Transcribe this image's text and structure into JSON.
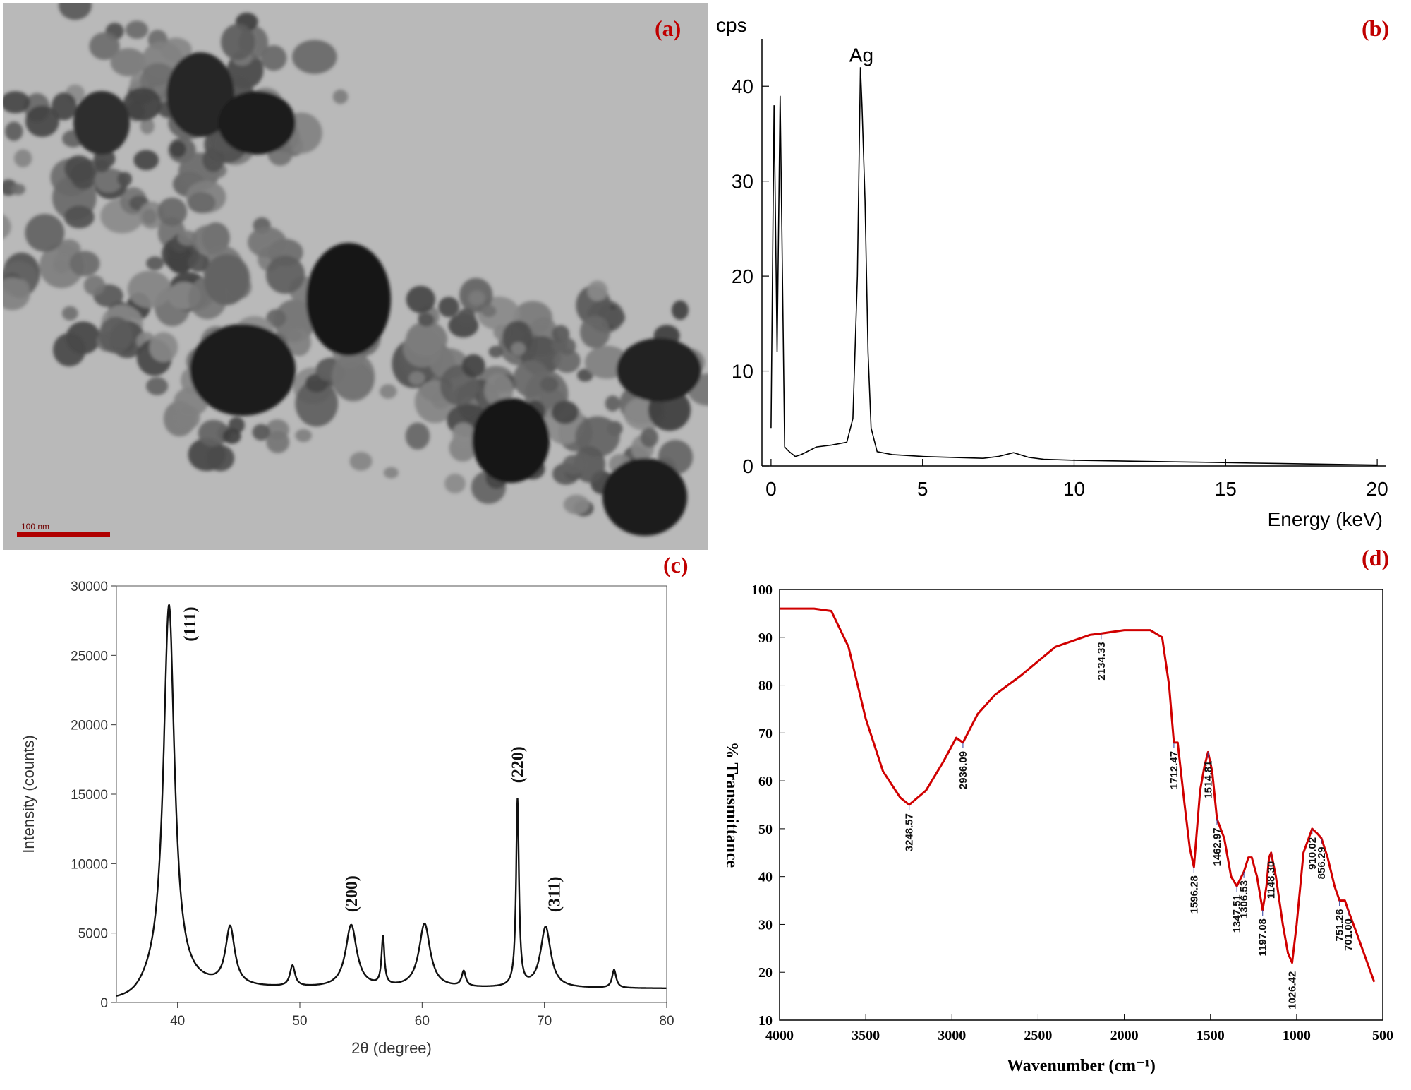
{
  "panels": {
    "a": {
      "label": "(a)",
      "scale_bar": "100 nm"
    },
    "b": {
      "label": "(b)"
    },
    "c": {
      "label": "(c)"
    },
    "d": {
      "label": "(d)"
    }
  },
  "colors": {
    "label": "#c00000",
    "ftir_line": "#d00000",
    "tem_bg": "#b8b8b8"
  },
  "chart_data": [
    {
      "id": "b",
      "type": "line",
      "title": "",
      "xlabel": "Energy (keV)",
      "ylabel": "cps",
      "xlim": [
        -0.3,
        20.3
      ],
      "ylim": [
        0,
        45
      ],
      "xticks": [
        0,
        5,
        10,
        15,
        20
      ],
      "yticks": [
        0,
        10,
        20,
        30,
        40
      ],
      "annotations": [
        {
          "text": "Ag",
          "x": 3.0,
          "y": 42
        }
      ],
      "x": [
        0,
        0.1,
        0.2,
        0.3,
        0.45,
        0.6,
        0.8,
        1,
        1.5,
        2,
        2.5,
        2.7,
        2.85,
        2.95,
        3.0,
        3.1,
        3.2,
        3.3,
        3.5,
        4,
        5,
        6,
        7,
        7.5,
        8,
        8.5,
        9,
        10,
        12,
        14,
        16,
        18,
        20
      ],
      "y": [
        4,
        38,
        12,
        39,
        2,
        1.5,
        1,
        1.2,
        2,
        2.2,
        2.5,
        5,
        20,
        42,
        38,
        28,
        12,
        4,
        1.5,
        1.2,
        1,
        0.9,
        0.8,
        1,
        1.4,
        0.9,
        0.7,
        0.6,
        0.5,
        0.4,
        0.3,
        0.2,
        0.1
      ]
    },
    {
      "id": "c",
      "type": "line",
      "title": "",
      "xlabel": "2θ (degree)",
      "ylabel": "Intensity (counts)",
      "xlim": [
        35,
        80
      ],
      "ylim": [
        0,
        30000
      ],
      "xticks": [
        40,
        50,
        60,
        70,
        80
      ],
      "yticks": [
        0,
        5000,
        10000,
        15000,
        20000,
        25000,
        30000
      ],
      "peaks": [
        {
          "x": 39.3,
          "y": 27600,
          "w": 0.55
        },
        {
          "x": 44.3,
          "y": 4200,
          "w": 0.45
        },
        {
          "x": 49.4,
          "y": 1500,
          "w": 0.25
        },
        {
          "x": 54.2,
          "y": 4500,
          "w": 0.55
        },
        {
          "x": 56.8,
          "y": 3500,
          "w": 0.14
        },
        {
          "x": 60.2,
          "y": 4600,
          "w": 0.55
        },
        {
          "x": 63.4,
          "y": 1100,
          "w": 0.2
        },
        {
          "x": 67.8,
          "y": 13500,
          "w": 0.14
        },
        {
          "x": 70.1,
          "y": 4400,
          "w": 0.5
        },
        {
          "x": 75.7,
          "y": 1300,
          "w": 0.2
        }
      ],
      "baseline": 1000,
      "onset": 36,
      "peak_labels": [
        {
          "text": "(111)",
          "x": 41.0,
          "y": 26000
        },
        {
          "text": "(200)",
          "x": 54.2,
          "y": 6500
        },
        {
          "text": "(220)",
          "x": 67.8,
          "y": 15800
        },
        {
          "text": "(311)",
          "x": 70.8,
          "y": 6500
        }
      ]
    },
    {
      "id": "d",
      "type": "line",
      "title": "",
      "xlabel": "Wavenumber (cm⁻¹)",
      "ylabel": "% Transmittance",
      "xlim": [
        4000,
        500
      ],
      "ylim": [
        10,
        100
      ],
      "xticks": [
        4000,
        3500,
        3000,
        2500,
        2000,
        1500,
        1000,
        500
      ],
      "yticks": [
        10,
        20,
        30,
        40,
        50,
        60,
        70,
        80,
        90,
        100
      ],
      "x": [
        4000,
        3800,
        3700,
        3600,
        3500,
        3400,
        3300,
        3248,
        3150,
        3050,
        2975,
        2936,
        2850,
        2750,
        2600,
        2400,
        2200,
        2134,
        2000,
        1850,
        1780,
        1740,
        1712,
        1690,
        1650,
        1620,
        1596,
        1560,
        1535,
        1514,
        1490,
        1462,
        1420,
        1380,
        1347,
        1320,
        1306,
        1280,
        1260,
        1230,
        1197,
        1175,
        1160,
        1148,
        1120,
        1080,
        1050,
        1026,
        1000,
        960,
        920,
        910,
        880,
        856,
        820,
        780,
        751,
        720,
        701,
        650,
        600,
        550
      ],
      "y": [
        96,
        96,
        95.5,
        88,
        73,
        62,
        56.5,
        55,
        58,
        64,
        69,
        68,
        74,
        78,
        82,
        88,
        90.5,
        90.8,
        91.5,
        91.5,
        90,
        80,
        68,
        68,
        55,
        46,
        42,
        58,
        63,
        66,
        62,
        52,
        48,
        40,
        38,
        40,
        41,
        44,
        44,
        40,
        33,
        38,
        44,
        45,
        40,
        30,
        24,
        22,
        30,
        45,
        49,
        50,
        49,
        48,
        44,
        38,
        35,
        35,
        33,
        28,
        23,
        18
      ],
      "peak_labels": [
        {
          "text": "3248.57",
          "x": 3248,
          "y": 55
        },
        {
          "text": "2936.09",
          "x": 2936,
          "y": 68
        },
        {
          "text": "2134.33",
          "x": 2134,
          "y": 90.8
        },
        {
          "text": "1712.47",
          "x": 1712,
          "y": 68
        },
        {
          "text": "1596.28",
          "x": 1596,
          "y": 42
        },
        {
          "text": "1514.81",
          "x": 1514,
          "y": 66
        },
        {
          "text": "1462.97",
          "x": 1462,
          "y": 52
        },
        {
          "text": "1347.51",
          "x": 1347,
          "y": 38
        },
        {
          "text": "1306.53",
          "x": 1306,
          "y": 41
        },
        {
          "text": "1197.08",
          "x": 1197,
          "y": 33
        },
        {
          "text": "1148.30",
          "x": 1148,
          "y": 45
        },
        {
          "text": "1026.42",
          "x": 1026,
          "y": 22
        },
        {
          "text": "910.02",
          "x": 910,
          "y": 50
        },
        {
          "text": "856.29",
          "x": 856,
          "y": 48
        },
        {
          "text": "751.26",
          "x": 751,
          "y": 35
        },
        {
          "text": "701.00",
          "x": 701,
          "y": 33
        }
      ]
    }
  ]
}
